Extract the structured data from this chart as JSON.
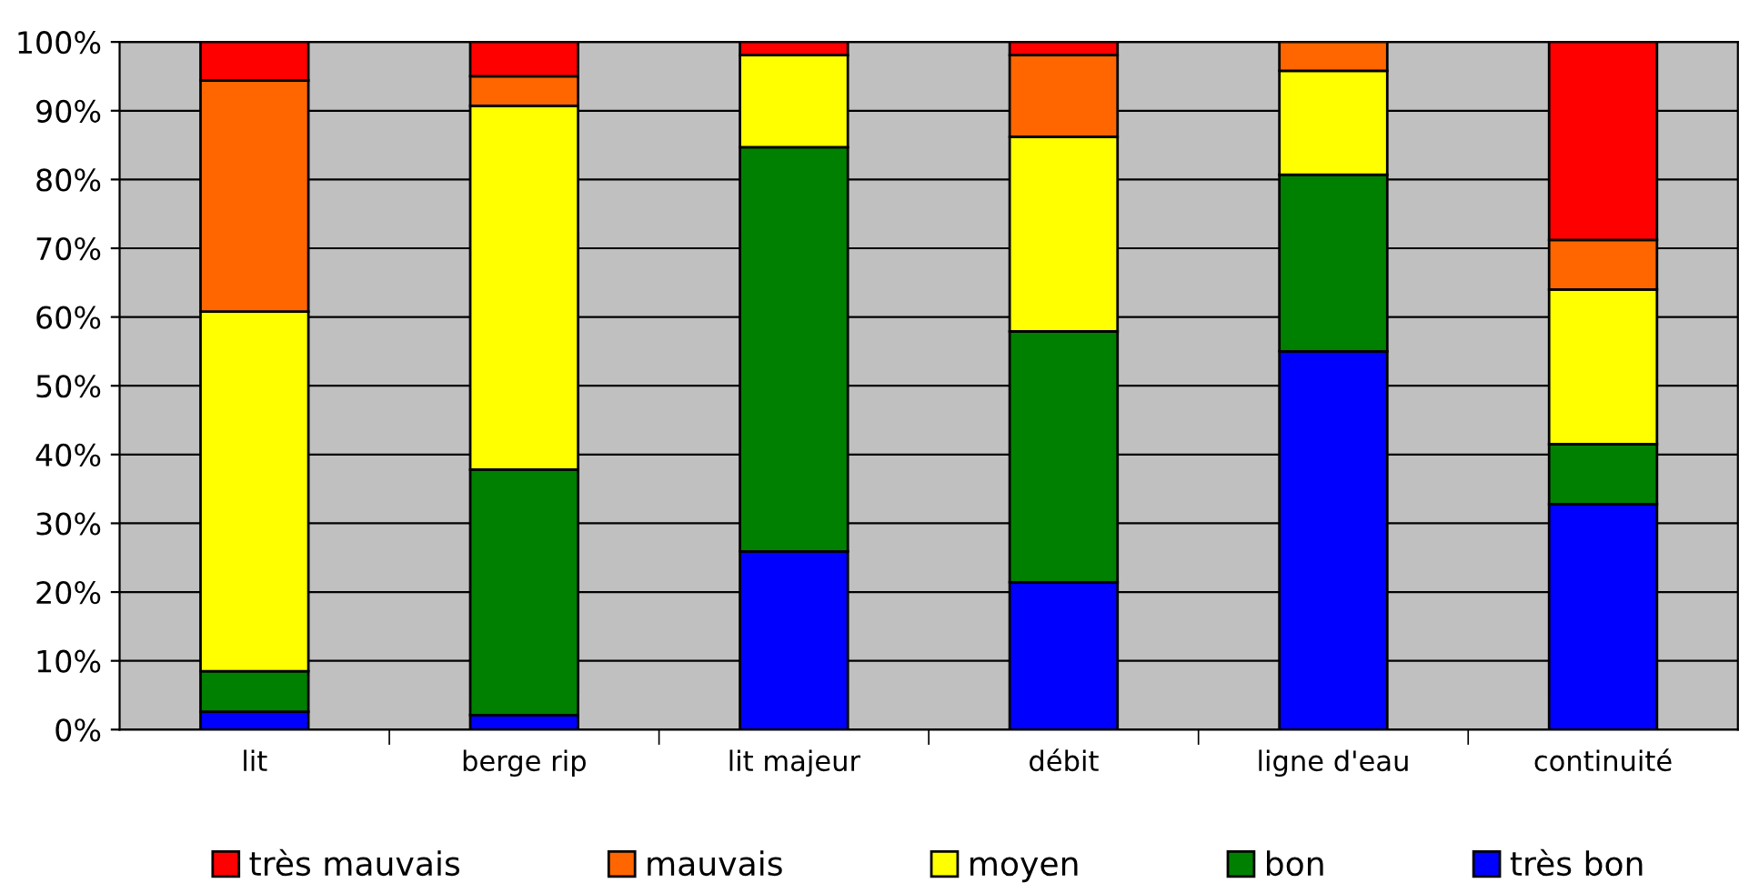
{
  "chart_data": {
    "type": "bar",
    "stacked": true,
    "categories": [
      "lit",
      "berge rip",
      "lit majeur",
      "débit",
      "ligne d'eau",
      "continuité"
    ],
    "series": [
      {
        "name": "très bon",
        "color": "#0000ff",
        "values": [
          2.6,
          2.1,
          25.9,
          21.4,
          55.0,
          32.8
        ]
      },
      {
        "name": "bon",
        "color": "#008000",
        "values": [
          5.9,
          35.7,
          58.8,
          36.5,
          25.7,
          8.7
        ]
      },
      {
        "name": "moyen",
        "color": "#ffff00",
        "values": [
          52.3,
          52.9,
          13.4,
          28.3,
          15.1,
          22.5
        ]
      },
      {
        "name": "mauvais",
        "color": "#ff6600",
        "values": [
          33.6,
          4.3,
          null,
          11.9,
          4.2,
          7.2
        ]
      },
      {
        "name": "très mauvais",
        "color": "#ff0000",
        "values": [
          5.6,
          5.0,
          1.9,
          1.9,
          null,
          28.8
        ]
      }
    ],
    "ylim": [
      0,
      100
    ],
    "yticks": [
      {
        "value": 0,
        "label": "0%"
      },
      {
        "value": 10,
        "label": "10%"
      },
      {
        "value": 20,
        "label": "20%"
      },
      {
        "value": 30,
        "label": "30%"
      },
      {
        "value": 40,
        "label": "40%"
      },
      {
        "value": 50,
        "label": "50%"
      },
      {
        "value": 60,
        "label": "60%"
      },
      {
        "value": 70,
        "label": "70%"
      },
      {
        "value": 80,
        "label": "80%"
      },
      {
        "value": 90,
        "label": "90%"
      },
      {
        "value": 100,
        "label": "100%"
      }
    ],
    "grid": "y",
    "legend": "bottom"
  }
}
